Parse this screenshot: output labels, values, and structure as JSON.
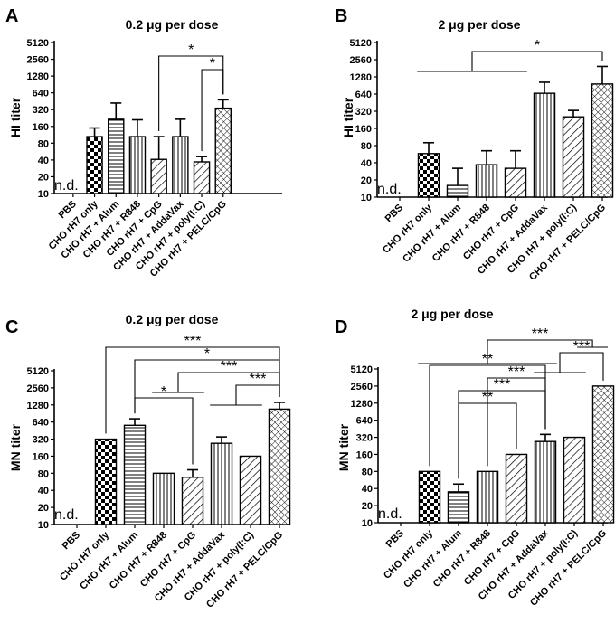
{
  "chart_data": [
    {
      "panel": "A",
      "type": "bar",
      "title": "0.2 μg per dose",
      "ylabel": "HI titer",
      "yscale": "log2",
      "ylim": [
        10,
        5120
      ],
      "yticks": [
        "10",
        "20",
        "40",
        "80",
        "160",
        "320",
        "640",
        "1280",
        "2560",
        "5120"
      ],
      "categories": [
        "PBS",
        "CHO rH7 only",
        "CHO rH7 + Alum",
        "CHO rH7 + R848",
        "CHO rH7 + CpG",
        "CHO rH7 + AddaVax",
        "CHO rH7 + poly(I:C)",
        "CHO rH7 + PELC/CpG"
      ],
      "values": [
        null,
        105,
        215,
        105,
        41,
        105,
        37,
        340
      ],
      "errors": [
        null,
        150,
        420,
        210,
        105,
        215,
        46,
        480
      ],
      "patterns": [
        "none",
        "checker",
        "hlines",
        "vlines",
        "diagR",
        "vlines",
        "diagR",
        "cross"
      ],
      "nd_label": "n.d.",
      "significance": [
        {
          "from": 4,
          "to": 7,
          "text": "*",
          "type": "bracket",
          "level": 0
        },
        {
          "from": 6,
          "to": 7,
          "text": "*",
          "type": "bracket",
          "level": 1
        }
      ]
    },
    {
      "panel": "B",
      "type": "bar",
      "title": "2 μg per dose",
      "ylabel": "HI titer",
      "yscale": "log2",
      "ylim": [
        10,
        5120
      ],
      "yticks": [
        "10",
        "20",
        "40",
        "80",
        "160",
        "320",
        "640",
        "1280",
        "2560",
        "5120"
      ],
      "categories": [
        "PBS",
        "CHO rH7 only",
        "CHO rH7 + Alum",
        "CHO rH7 + R848",
        "CHO rH7 + CpG",
        "CHO rH7 + AddaVax",
        "CHO rH7 + poly(I:C)",
        "CHO rH7 + PELC/CpG"
      ],
      "values": [
        null,
        58,
        16,
        37,
        32,
        660,
        255,
        960
      ],
      "errors": [
        null,
        90,
        32,
        65,
        65,
        1030,
        330,
        1950
      ],
      "patterns": [
        "none",
        "checker",
        "hlines",
        "vlines",
        "diagR",
        "vlines",
        "diagR",
        "cross"
      ],
      "nd_label": "n.d.",
      "significance": [
        {
          "group_from": 1,
          "group_to": 4,
          "to": 7,
          "text": "*",
          "type": "group",
          "level": 0
        }
      ]
    },
    {
      "panel": "C",
      "type": "bar",
      "title": "0.2 μg  per dose",
      "ylabel": "MN titer",
      "yscale": "log2",
      "ylim": [
        10,
        5120
      ],
      "yticks": [
        "10",
        "20",
        "40",
        "80",
        "160",
        "320",
        "640",
        "1280",
        "2560",
        "5120"
      ],
      "categories": [
        "PBS",
        "CHO rH7 only",
        "CHO rH7 + Alum",
        "CHO rH7 + R848",
        "CHO rH7 + CpG",
        "CHO rH7 + AddaVax",
        "CHO rH7 + poly(I:C)",
        "CHO rH7 + PELC/CpG"
      ],
      "values": [
        null,
        320,
        560,
        80,
        68,
        270,
        160,
        1080
      ],
      "errors": [
        null,
        320,
        730,
        80,
        92,
        350,
        160,
        1420
      ],
      "patterns": [
        "none",
        "checker",
        "hlines",
        "vlines",
        "diagR",
        "vlines",
        "diagR",
        "cross"
      ],
      "nd_label": "n.d.",
      "significance": [
        {
          "from": 1,
          "to": 7,
          "text": "***",
          "type": "bracket",
          "level": 0
        },
        {
          "from": 2,
          "to": 7,
          "text": "*",
          "type": "bracket",
          "level": 1
        },
        {
          "group_from": 3,
          "group_to": 4,
          "to": 7,
          "text": "***",
          "type": "group",
          "level": 2
        },
        {
          "group_from": 5,
          "group_to": 6,
          "to": 7,
          "text": "***",
          "type": "group",
          "level": 3
        },
        {
          "from": 2,
          "to": 4,
          "text": "*",
          "type": "bracket",
          "level": 4
        }
      ]
    },
    {
      "panel": "D",
      "type": "bar",
      "title": "2 μg per dose",
      "ylabel": "MN titer",
      "yscale": "log2",
      "ylim": [
        10,
        5120
      ],
      "yticks": [
        "10",
        "20",
        "40",
        "80",
        "160",
        "320",
        "640",
        "1280",
        "2560",
        "5120"
      ],
      "categories": [
        "PBS",
        "CHO rH7 only",
        "CHO rH7 + Alum",
        "CHO rH7 + R848",
        "CHO rH7 + CpG",
        "CHO rH7 + AddaVax",
        "CHO rH7 + poly(I:C)",
        "CHO rH7 + PELC/CpG"
      ],
      "values": [
        null,
        80,
        35,
        80,
        160,
        270,
        320,
        2560
      ],
      "errors": [
        null,
        80,
        48,
        80,
        160,
        360,
        320,
        2560
      ],
      "patterns": [
        "none",
        "checker",
        "hlines",
        "vlines",
        "diagR",
        "vlines",
        "diagR",
        "cross"
      ],
      "nd_label": "n.d.",
      "significance": [
        {
          "group_from": 1,
          "group_to": 5,
          "group_to2": 7,
          "text": "***",
          "type": "group2",
          "level": 0
        },
        {
          "group_from": 5,
          "group_to": 6,
          "to": 7,
          "text": "***",
          "type": "group",
          "level": 1
        },
        {
          "from": 1,
          "to": 5,
          "text": "**",
          "type": "bracket",
          "level": 2
        },
        {
          "from": 3,
          "to": 5,
          "text": "***",
          "type": "bracket",
          "level": 3
        },
        {
          "from": 2,
          "to": 5,
          "text": "***",
          "type": "bracket",
          "level": 4
        },
        {
          "from": 2,
          "to": 4,
          "text": "**",
          "type": "bracket",
          "level": 5
        }
      ]
    }
  ]
}
